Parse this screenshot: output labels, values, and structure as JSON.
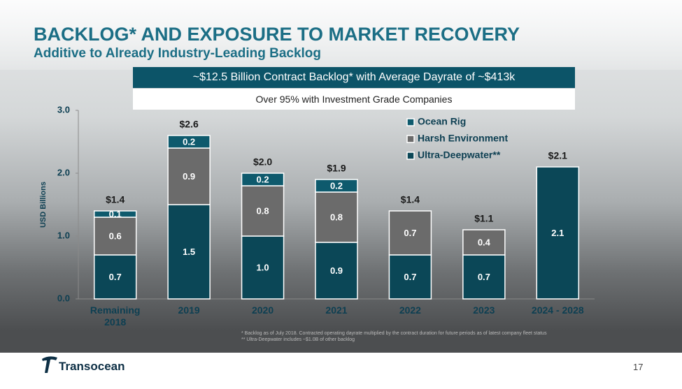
{
  "slide": {
    "title": "BACKLOG* AND EXPOSURE TO MARKET RECOVERY",
    "subtitle": "Additive to Already Industry-Leading Backlog",
    "banner": "~$12.5 Billion Contract Backlog* with Average Dayrate of ~$413k",
    "sub_banner": "Over 95% with Investment Grade Companies",
    "footnotes": [
      "* Backlog as of July 2018. Contracted operating dayrate multiplied by the contract duration for future periods as of latest company fleet status",
      "** Ultra-Deepwater includes ~$1.0B of other backlog"
    ],
    "logo": "Transocean",
    "page_number": "17"
  },
  "chart_data": {
    "type": "stacked-bar",
    "y_label": "USD Billions",
    "categories": [
      "Remaining 2018",
      "2019",
      "2020",
      "2021",
      "2022",
      "2023",
      "2024 - 2028"
    ],
    "series": [
      {
        "name": "Ultra-Deepwater**",
        "color": "#0b4757",
        "values": [
          0.7,
          1.5,
          1.0,
          0.9,
          0.7,
          0.7,
          2.1
        ],
        "value_labels": [
          "0.7",
          "1.5",
          "1.0",
          "0.9",
          "0.7",
          "0.7",
          "2.1"
        ]
      },
      {
        "name": "Harsh Environment",
        "color": "#6b6b6b",
        "values": [
          0.6,
          0.9,
          0.8,
          0.8,
          0.7,
          0.4,
          null
        ],
        "value_labels": [
          "0.6",
          "0.9",
          "0.8",
          "0.8",
          "0.7",
          "0.4",
          null
        ]
      },
      {
        "name": "Ocean Rig",
        "color": "#0e5a6d",
        "values": [
          0.1,
          0.2,
          0.2,
          0.2,
          null,
          null,
          null
        ],
        "value_labels": [
          "0.1",
          "0.2",
          "0.2",
          "0.2",
          null,
          null,
          null
        ]
      }
    ],
    "totals": {
      "values": [
        1.4,
        2.6,
        2.0,
        1.9,
        1.4,
        1.1,
        2.1
      ],
      "value_labels": [
        "$1.4",
        "$2.6",
        "$2.0",
        "$1.9",
        "$1.4",
        "$1.1",
        "$2.1"
      ]
    },
    "ylim": [
      0,
      3
    ],
    "yticks": [
      {
        "value": 0,
        "label": "0.0"
      },
      {
        "value": 1,
        "label": "1.0"
      },
      {
        "value": 2,
        "label": "2.0"
      },
      {
        "value": 3,
        "label": "3.0"
      }
    ],
    "grid": false
  }
}
